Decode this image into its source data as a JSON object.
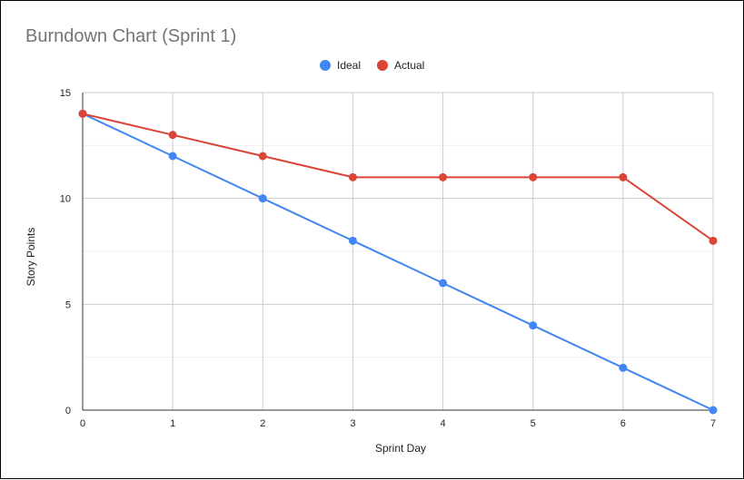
{
  "chart_data": {
    "type": "line",
    "title": "Burndown Chart (Sprint 1)",
    "xlabel": "Sprint Day",
    "ylabel": "Story Points",
    "x": [
      0,
      1,
      2,
      3,
      4,
      5,
      6,
      7
    ],
    "xticks": [
      "0",
      "1",
      "2",
      "3",
      "4",
      "5",
      "6",
      "7"
    ],
    "yticks": [
      "0",
      "5",
      "10",
      "15"
    ],
    "ylim": [
      0,
      15
    ],
    "xlim": [
      0,
      7
    ],
    "grid": true,
    "legend_position": "top-center",
    "series": [
      {
        "name": "Ideal",
        "color": "#4285f4",
        "values": [
          14,
          12,
          10,
          8,
          6,
          4,
          2,
          0
        ]
      },
      {
        "name": "Actual",
        "color": "#db4437",
        "values": [
          14,
          13,
          12,
          11,
          11,
          11,
          11,
          8
        ]
      }
    ]
  }
}
